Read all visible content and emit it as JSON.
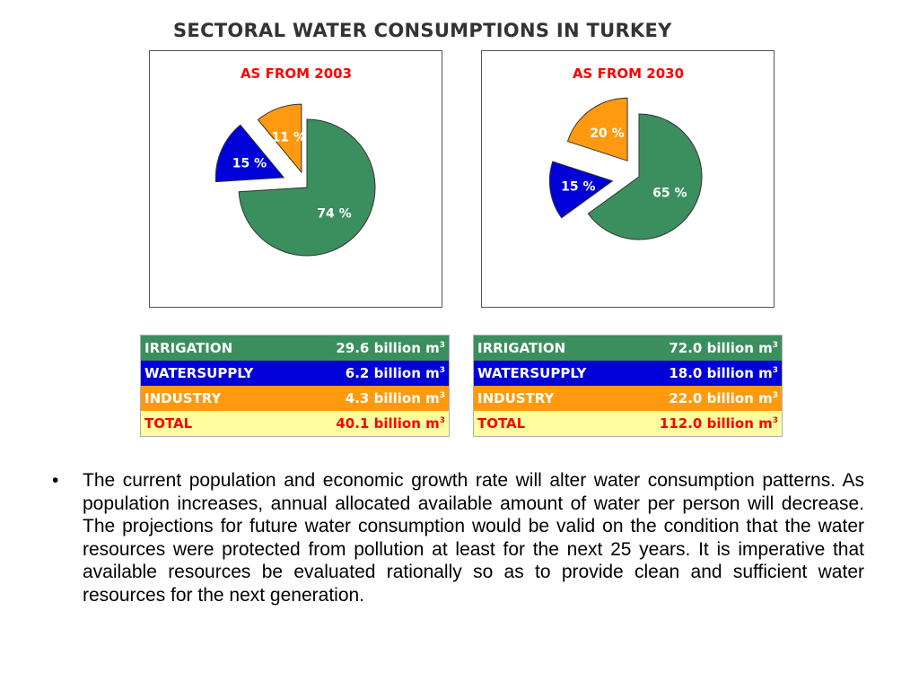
{
  "title": "SECTORAL WATER CONSUMPTIONS IN TURKEY",
  "colors": {
    "irrigation": "#3b8f5e",
    "watersupply": "#0000d8",
    "industry": "#ff9a10",
    "total_bg": "#ffffa0",
    "total_text": "#ff0000",
    "chart_title": "#ff0000"
  },
  "chart_data": [
    {
      "type": "pie",
      "title": "AS FROM 2003",
      "categories": [
        "IRRIGATION",
        "WATERSUPPLY",
        "INDUSTRY"
      ],
      "values": [
        74,
        15,
        11
      ],
      "labels": [
        "74 %",
        "15 %",
        "11 %"
      ],
      "exploded": true
    },
    {
      "type": "pie",
      "title": "AS FROM 2030",
      "categories": [
        "IRRIGATION",
        "WATERSUPPLY",
        "INDUSTRY"
      ],
      "values": [
        65,
        15,
        20
      ],
      "labels": [
        "65 %",
        "15 %",
        "20 %"
      ],
      "exploded": true
    }
  ],
  "tables": [
    {
      "rows": [
        {
          "label": "IRRIGATION",
          "value": "29.6 billion m",
          "unit_sup": "3"
        },
        {
          "label": "WATERSUPPLY",
          "value": "6.2 billion m",
          "unit_sup": "3"
        },
        {
          "label": "INDUSTRY",
          "value": "4.3 billion m",
          "unit_sup": "3"
        },
        {
          "label": "TOTAL",
          "value": "40.1 billion m",
          "unit_sup": "3"
        }
      ]
    },
    {
      "rows": [
        {
          "label": "IRRIGATION",
          "value": "72.0 billion m",
          "unit_sup": "3"
        },
        {
          "label": "WATERSUPPLY",
          "value": "18.0 billion m",
          "unit_sup": "3"
        },
        {
          "label": "INDUSTRY",
          "value": "22.0 billion m",
          "unit_sup": "3"
        },
        {
          "label": "TOTAL",
          "value": "112.0 billion m",
          "unit_sup": "3"
        }
      ]
    }
  ],
  "bullet": {
    "marker": "•",
    "text": "The current population and economic growth rate will alter water consumption patterns. As population increases, annual allocated available amount of water per person will decrease. The projections for future water consumption would be valid on the condition that the water resources were protected from pollution at least for the next 25 years. It is imperative that available resources be evaluated rationally so as to provide clean and sufficient water resources for the next generation."
  }
}
